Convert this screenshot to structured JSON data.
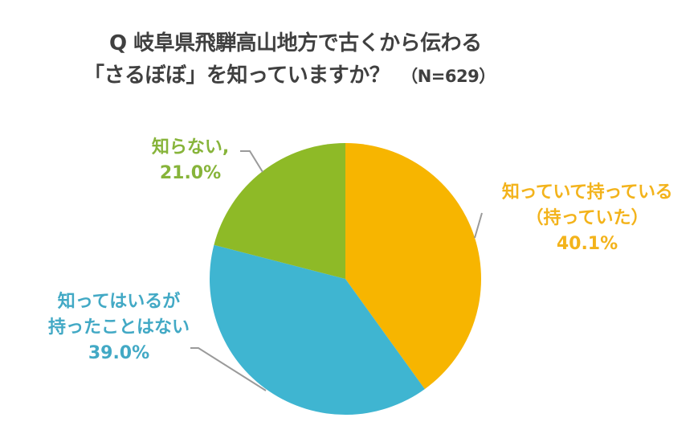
{
  "title": {
    "line1": "Q 岐阜県飛騨高山地方で古くから伝わる",
    "line2": "「さるぼぼ」を知っていますか？",
    "sample": "（N=629）"
  },
  "colors": {
    "own": "#F7B500",
    "know_not_own": "#3FB5D1",
    "dont_know": "#8EBA27",
    "leader": "#9A9A9A",
    "title": "#404040"
  },
  "labels": {
    "own": {
      "line1": "知っていて持っている",
      "line2": "（持っていた）",
      "value": "40.1%"
    },
    "know_not_own": {
      "line1": "知ってはいるが",
      "line2": "持ったことはない",
      "value": "39.0%"
    },
    "dont_know": {
      "line1": "知らない,",
      "value": "21.0%"
    }
  },
  "chart_data": {
    "type": "pie",
    "title": "Q 岐阜県飛騨高山地方で古くから伝わる「さるぼぼ」を知っていますか？（N=629）",
    "categories": [
      "知っていて持っている（持っていた）",
      "知ってはいるが持ったことはない",
      "知らない"
    ],
    "values": [
      40.1,
      39.0,
      21.0
    ],
    "unit": "%",
    "n": 629,
    "start_angle": "12 o'clock",
    "direction": "clockwise",
    "colors": [
      "#F7B500",
      "#3FB5D1",
      "#8EBA27"
    ],
    "legend": "data labels with leader lines"
  }
}
